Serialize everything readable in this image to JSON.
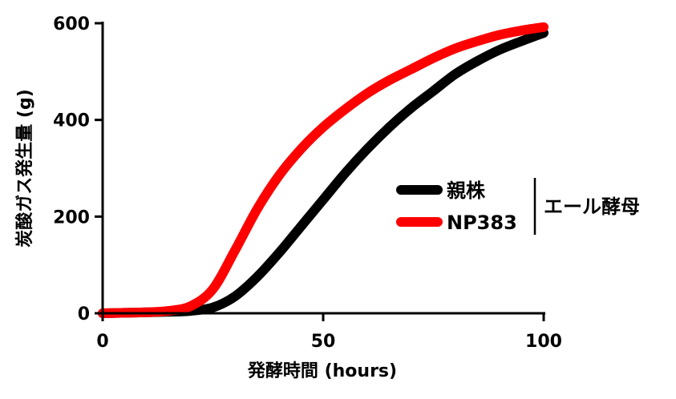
{
  "chart_data": {
    "type": "line",
    "xlabel": "発酵時間 (hours)",
    "ylabel": "炭酸ガス発生量 (g)",
    "xlim": [
      0,
      100
    ],
    "ylim": [
      0,
      600
    ],
    "xticks": [
      0,
      50,
      100
    ],
    "yticks": [
      0,
      200,
      400,
      600
    ],
    "x_tick_labels": [
      "0",
      "50",
      "100"
    ],
    "y_tick_labels": [
      "0",
      "200",
      "400",
      "600"
    ],
    "legend_position": "center-right",
    "legend_group_label": "エール酵母",
    "grid": false,
    "series": [
      {
        "name": "親株",
        "color": "#000000",
        "x": [
          0,
          5,
          10,
          15,
          20,
          25,
          30,
          35,
          40,
          45,
          50,
          55,
          60,
          65,
          70,
          75,
          80,
          85,
          90,
          95,
          100
        ],
        "y": [
          0,
          1,
          2,
          3,
          5,
          12,
          35,
          75,
          125,
          180,
          235,
          290,
          340,
          385,
          425,
          460,
          495,
          522,
          545,
          563,
          580
        ]
      },
      {
        "name": "NP383",
        "color": "#ff0000",
        "x": [
          0,
          5,
          10,
          15,
          20,
          25,
          30,
          35,
          40,
          45,
          50,
          55,
          60,
          65,
          70,
          75,
          80,
          85,
          90,
          95,
          100
        ],
        "y": [
          0,
          1,
          2,
          5,
          15,
          50,
          130,
          215,
          285,
          340,
          385,
          422,
          455,
          482,
          505,
          528,
          548,
          563,
          576,
          585,
          592
        ]
      }
    ]
  }
}
